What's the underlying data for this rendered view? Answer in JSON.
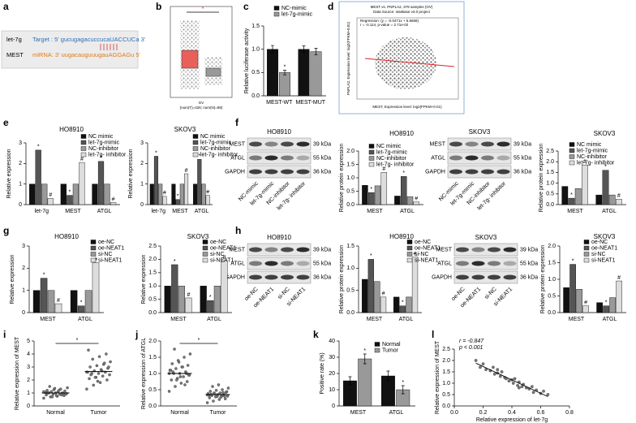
{
  "panel_labels": [
    "a",
    "b",
    "c",
    "d",
    "e",
    "f",
    "g",
    "h",
    "i",
    "j",
    "k",
    "l"
  ],
  "panel_a": {
    "rows": [
      {
        "name": "let-7g",
        "seq": "Target : 5'  gucugagacuccucaUACCUCa  3'"
      },
      {
        "name": "MEST",
        "seq": "miRNA: 3'  uugacauguuugauAGGAGu  5'"
      }
    ]
  },
  "panel_b": {
    "significance": "*",
    "xlabel": "GV",
    "note": "(num(T)=426; num(N)=88)"
  },
  "panel_d": {
    "title": "MEST vs. PNPLA2, 379 samples (OV)",
    "source": "Data Source: starBase v3.0 project",
    "regression": "Regression: (y = -0.0471x + 5.6658)",
    "stats": "r = -0.114, p-value = 2.71e-02",
    "xlabel": "MEST, Expression level: log2(FPKM+0.01)",
    "ylabel": "PNPLA2, Expression level: log2(FPKM+0.01)"
  },
  "blots": [
    {
      "title": "HO8910",
      "rows": [
        "MEST",
        "ATGL",
        "GAPDH"
      ],
      "sizes": [
        "39 kDa",
        "55 kDa",
        "36 kDa"
      ],
      "lanes": [
        "NC-mimic",
        "let-7g-mimic",
        "NC-inhibitor",
        "let-7g- inhibitor"
      ]
    },
    {
      "title": "SKOV3",
      "rows": [
        "MEST",
        "ATGL",
        "GAPDH"
      ],
      "sizes": [
        "39 kDa",
        "55 kDa",
        "36 kDa"
      ],
      "lanes": [
        "NC-mimic",
        "let-7g-mimic",
        "NC-inhibitor",
        "let-7g- inhibitor"
      ]
    },
    {
      "title": "HO8910",
      "rows": [
        "MEST",
        "ATGL",
        "GAPDH"
      ],
      "sizes": [
        "39 kDa",
        "55 kDa",
        "36 kDa"
      ],
      "lanes": [
        "oe-NC",
        "oe-NEAT1",
        "si-NC",
        "si-NEAT1"
      ]
    },
    {
      "title": "SKOV3",
      "rows": [
        "MEST",
        "ATGL",
        "GAPDH"
      ],
      "sizes": [
        "39 kDa",
        "55 kDa",
        "36 kDa"
      ],
      "lanes": [
        "oe-NC",
        "oe-NEAT1",
        "si-NC",
        "si-NEAT1"
      ]
    }
  ],
  "chart_data": [
    {
      "type": "bar",
      "categories": [
        "MEST-WT",
        "MEST-MUT"
      ],
      "ylabel": "Relative luciferase activity",
      "ylim": [
        0,
        1.5
      ],
      "yticks": [
        {
          "value": 0,
          "label": "0.0"
        },
        {
          "value": 0.5,
          "label": "0.5"
        },
        {
          "value": 1,
          "label": "1.0"
        },
        {
          "value": 1.5,
          "label": "1.5"
        }
      ],
      "series": [
        {
          "name": "NC-mimic",
          "color": "#111111",
          "values": [
            1.0,
            1.0
          ],
          "errors": [
            0.08,
            0.07
          ]
        },
        {
          "name": "let-7g-mimic",
          "color": "#999999",
          "values": [
            0.5,
            0.95
          ],
          "errors": [
            0.05,
            0.07
          ],
          "annotations": [
            "*",
            null
          ]
        }
      ]
    },
    {
      "type": "bar",
      "title": "HO8910",
      "categories": [
        "let-7g",
        "MEST",
        "ATGL"
      ],
      "ylabel": "Relative expression",
      "ylim": [
        0,
        3
      ],
      "yticks": [
        0,
        1,
        2,
        3
      ],
      "series": [
        {
          "name": "NC mimic",
          "color": "#111111",
          "values": [
            1.0,
            1.0,
            1.0
          ]
        },
        {
          "name": "let-7g-mimic",
          "color": "#555555",
          "values": [
            2.65,
            0.45,
            2.1
          ],
          "annotations": [
            "*",
            "*",
            "*"
          ]
        },
        {
          "name": "NC-inhibitor",
          "color": "#999999",
          "values": [
            1.0,
            1.0,
            1.0
          ]
        },
        {
          "name": "let-7g- inhibitor",
          "color": "#dddddd",
          "values": [
            0.3,
            2.05,
            0.1
          ],
          "annotations": [
            "#",
            "#",
            "#"
          ]
        }
      ]
    },
    {
      "type": "bar",
      "title": "SKOV3",
      "categories": [
        "let-7g",
        "MEST",
        "ATGL"
      ],
      "ylabel": "Relative expression",
      "ylim": [
        0,
        3
      ],
      "yticks": [
        0,
        1,
        2,
        3
      ],
      "series": [
        {
          "name": "NC mimic",
          "color": "#111111",
          "values": [
            1.0,
            1.0,
            1.0
          ]
        },
        {
          "name": "let-7g-mimic",
          "color": "#555555",
          "values": [
            2.35,
            0.25,
            2.2
          ],
          "annotations": [
            "*",
            "*",
            "*"
          ]
        },
        {
          "name": "NC-inhibitor",
          "color": "#999999",
          "values": [
            1.0,
            1.0,
            1.0
          ]
        },
        {
          "name": "let-7g- inhibitor",
          "color": "#dddddd",
          "values": [
            0.4,
            1.5,
            0.45
          ],
          "annotations": [
            "#",
            "#",
            "#"
          ]
        }
      ]
    },
    {
      "type": "bar",
      "title": "HO8910",
      "categories": [
        "MEST",
        "ATGL"
      ],
      "ylabel": "Relative protein expression",
      "ylim": [
        0,
        2
      ],
      "yticks": [
        {
          "value": 0,
          "label": "0.0"
        },
        {
          "value": 0.5,
          "label": "0.5"
        },
        {
          "value": 1,
          "label": "1.0"
        },
        {
          "value": 1.5,
          "label": "1.5"
        },
        {
          "value": 2,
          "label": "2.0"
        }
      ],
      "series": [
        {
          "name": "NC mimic",
          "color": "#111111",
          "values": [
            0.72,
            0.32
          ]
        },
        {
          "name": "let-7g-mimic",
          "color": "#555555",
          "values": [
            0.45,
            1.05
          ],
          "annotations": [
            "*",
            "*"
          ]
        },
        {
          "name": "NC-inhibitor",
          "color": "#999999",
          "values": [
            0.7,
            0.3
          ]
        },
        {
          "name": "let-7g- inhibitor",
          "color": "#dddddd",
          "values": [
            1.2,
            0.1
          ],
          "annotations": [
            "#",
            "#"
          ]
        }
      ]
    },
    {
      "type": "bar",
      "title": "SKOV3",
      "categories": [
        "MEST",
        "ATGL"
      ],
      "ylabel": "Relative protein expression",
      "ylim": [
        0,
        2.5
      ],
      "yticks": [
        {
          "value": 0,
          "label": "0.0"
        },
        {
          "value": 0.5,
          "label": "0.5"
        },
        {
          "value": 1,
          "label": "1.0"
        },
        {
          "value": 1.5,
          "label": "1.5"
        },
        {
          "value": 2,
          "label": "2.0"
        },
        {
          "value": 2.5,
          "label": "2.5"
        }
      ],
      "series": [
        {
          "name": "NC mimic",
          "color": "#111111",
          "values": [
            0.85,
            0.45
          ]
        },
        {
          "name": "let-7g-mimic",
          "color": "#555555",
          "values": [
            0.3,
            1.6
          ],
          "annotations": [
            "*",
            "*"
          ]
        },
        {
          "name": "NC-inhibitor",
          "color": "#999999",
          "values": [
            0.75,
            0.45
          ]
        },
        {
          "name": "let-7g- inhibitor",
          "color": "#dddddd",
          "values": [
            1.85,
            0.25
          ],
          "annotations": [
            "#",
            "#"
          ]
        }
      ]
    },
    {
      "type": "bar",
      "title": "HO8910",
      "categories": [
        "MEST",
        "ATGL"
      ],
      "ylabel": "Relative expression",
      "ylim": [
        0,
        3
      ],
      "yticks": [
        0,
        1,
        2,
        3
      ],
      "series": [
        {
          "name": "oe-NC",
          "color": "#111111",
          "values": [
            1.0,
            1.0
          ]
        },
        {
          "name": "oe-NEAT1",
          "color": "#555555",
          "values": [
            1.55,
            0.3
          ],
          "annotations": [
            "*",
            "*"
          ]
        },
        {
          "name": "si-NC",
          "color": "#999999",
          "values": [
            1.0,
            1.0
          ]
        },
        {
          "name": "si-NEAT1",
          "color": "#dddddd",
          "values": [
            0.4,
            2.25
          ],
          "annotations": [
            "#",
            "#"
          ]
        }
      ]
    },
    {
      "type": "bar",
      "title": "SKOV3",
      "categories": [
        "MEST",
        "ATGL"
      ],
      "ylabel": "Relative expression",
      "ylim": [
        0,
        2.5
      ],
      "yticks": [
        {
          "value": 0,
          "label": "0.0"
        },
        {
          "value": 0.5,
          "label": "0.5"
        },
        {
          "value": 1,
          "label": "1.0"
        },
        {
          "value": 1.5,
          "label": "1.5"
        },
        {
          "value": 2,
          "label": "2.0"
        },
        {
          "value": 2.5,
          "label": "2.5"
        }
      ],
      "series": [
        {
          "name": "oe-NC",
          "color": "#111111",
          "values": [
            1.0,
            1.0
          ]
        },
        {
          "name": "oe-NEAT1",
          "color": "#555555",
          "values": [
            1.8,
            0.45
          ],
          "annotations": [
            "*",
            "*"
          ]
        },
        {
          "name": "si-NC",
          "color": "#999999",
          "values": [
            1.0,
            1.0
          ]
        },
        {
          "name": "si-NEAT1",
          "color": "#dddddd",
          "values": [
            0.55,
            1.95
          ],
          "annotations": [
            "#",
            "#"
          ]
        }
      ]
    },
    {
      "type": "bar",
      "title": "HO8910",
      "categories": [
        "MEST",
        "ATGL"
      ],
      "ylabel": "Relative protein expression",
      "ylim": [
        0,
        1.5
      ],
      "yticks": [
        {
          "value": 0,
          "label": "0.0"
        },
        {
          "value": 0.5,
          "label": "0.5"
        },
        {
          "value": 1,
          "label": "1.0"
        },
        {
          "value": 1.5,
          "label": "1.5"
        }
      ],
      "series": [
        {
          "name": "oe-NC",
          "color": "#111111",
          "values": [
            0.75,
            0.35
          ]
        },
        {
          "name": "oe-NEAT1",
          "color": "#555555",
          "values": [
            1.2,
            0.15
          ],
          "annotations": [
            "*",
            "*"
          ]
        },
        {
          "name": "si-NC",
          "color": "#999999",
          "values": [
            0.7,
            0.35
          ]
        },
        {
          "name": "si-NEAT1",
          "color": "#dddddd",
          "values": [
            0.35,
            1.25
          ],
          "annotations": [
            "#",
            "#"
          ]
        }
      ]
    },
    {
      "type": "bar",
      "title": "SKOV3",
      "categories": [
        "MEST",
        "ATGL"
      ],
      "ylabel": "Relative protein expression",
      "ylim": [
        0,
        2
      ],
      "yticks": [
        {
          "value": 0,
          "label": "0.0"
        },
        {
          "value": 0.5,
          "label": "0.5"
        },
        {
          "value": 1,
          "label": "1.0"
        },
        {
          "value": 1.5,
          "label": "1.5"
        },
        {
          "value": 2,
          "label": "2.0"
        }
      ],
      "series": [
        {
          "name": "oe-NC",
          "color": "#111111",
          "values": [
            0.75,
            0.3
          ]
        },
        {
          "name": "oe-NEAT1",
          "color": "#555555",
          "values": [
            1.45,
            0.2
          ],
          "annotations": [
            "*",
            "*"
          ]
        },
        {
          "name": "si-NC",
          "color": "#999999",
          "values": [
            0.7,
            0.45
          ]
        },
        {
          "name": "si-NEAT1",
          "color": "#dddddd",
          "values": [
            0.2,
            0.95
          ],
          "annotations": [
            "#",
            "#"
          ]
        }
      ]
    },
    {
      "type": "strip",
      "categories": [
        "Normal",
        "Tumor"
      ],
      "ylabel": "Relative expression of MEST",
      "color": "#777777",
      "ylim": [
        0,
        5
      ],
      "yticks": [
        0,
        1,
        2,
        3,
        4,
        5
      ],
      "significance": "*",
      "means": [
        1.0,
        2.65
      ],
      "values": [
        [
          0.6,
          0.7,
          0.75,
          0.8,
          0.85,
          0.9,
          0.9,
          0.95,
          1.0,
          1.0,
          1.0,
          1.05,
          1.1,
          1.1,
          1.15,
          1.2,
          1.25,
          1.3,
          1.4,
          1.5,
          0.8,
          0.95,
          1.05,
          0.7,
          1.2,
          0.9,
          1.0,
          1.35,
          0.85,
          1.1
        ],
        [
          1.3,
          1.6,
          1.8,
          2.0,
          2.1,
          2.2,
          2.3,
          2.4,
          2.5,
          2.5,
          2.6,
          2.6,
          2.7,
          2.8,
          2.9,
          3.0,
          3.1,
          3.2,
          3.4,
          3.6,
          3.8,
          4.0,
          4.3,
          2.2,
          2.7,
          3.0,
          2.4,
          1.9,
          3.3,
          2.6
        ]
      ]
    },
    {
      "type": "strip",
      "categories": [
        "Normal",
        "Tumor"
      ],
      "ylabel": "Relative expression of ATGL",
      "color": "#777777",
      "ylim": [
        0,
        2
      ],
      "yticks": [
        {
          "value": 0,
          "label": "0.0"
        },
        {
          "value": 0.5,
          "label": "0.5"
        },
        {
          "value": 1,
          "label": "1.0"
        },
        {
          "value": 1.5,
          "label": "1.5"
        },
        {
          "value": 2,
          "label": "2.0"
        }
      ],
      "significance": "*",
      "means": [
        1.0,
        0.35
      ],
      "values": [
        [
          0.45,
          0.6,
          0.7,
          0.75,
          0.8,
          0.85,
          0.9,
          0.95,
          1.0,
          1.0,
          1.05,
          1.1,
          1.15,
          1.2,
          1.25,
          1.3,
          1.4,
          1.5,
          1.6,
          1.75,
          0.9,
          1.0,
          1.1,
          0.8,
          1.2,
          0.95,
          1.05,
          1.35,
          0.65,
          1.0
        ],
        [
          0.1,
          0.15,
          0.2,
          0.22,
          0.25,
          0.28,
          0.3,
          0.3,
          0.32,
          0.35,
          0.35,
          0.38,
          0.4,
          0.4,
          0.42,
          0.45,
          0.48,
          0.5,
          0.55,
          0.6,
          0.65,
          0.3,
          0.33,
          0.37,
          0.27,
          0.44,
          0.36,
          0.29,
          0.41,
          0.34
        ]
      ]
    },
    {
      "type": "bar",
      "categories": [
        "MEST",
        "ATGL"
      ],
      "ylabel": "Positive rate (%)",
      "ylim": [
        0,
        40
      ],
      "yticks": [
        0,
        10,
        20,
        30,
        40
      ],
      "series": [
        {
          "name": "Normal",
          "color": "#111111",
          "values": [
            15.5,
            18.5
          ],
          "errors": [
            2.5,
            3
          ]
        },
        {
          "name": "Tumor",
          "color": "#999999",
          "values": [
            29,
            10
          ],
          "errors": [
            3,
            2.5
          ],
          "annotations": [
            "*",
            "*"
          ]
        }
      ]
    },
    {
      "type": "scatter",
      "xlabel": "Relative expression of let-7g",
      "ylabel": "Relative expression of MEST",
      "color": "#777777",
      "annotations": [
        "r = -0.847",
        "p < 0.001"
      ],
      "xlim": [
        0,
        0.8
      ],
      "xticks": [
        {
          "value": 0,
          "label": "0.0"
        },
        {
          "value": 0.2,
          "label": "0.2"
        },
        {
          "value": 0.4,
          "label": "0.4"
        },
        {
          "value": 0.6,
          "label": "0.6"
        },
        {
          "value": 0.8,
          "label": "0.8"
        }
      ],
      "ylim": [
        0,
        2.5
      ],
      "yticks": [
        {
          "value": 0,
          "label": "0.0"
        },
        {
          "value": 0.5,
          "label": "0.5"
        },
        {
          "value": 1,
          "label": "1.0"
        },
        {
          "value": 1.5,
          "label": "1.5"
        },
        {
          "value": 2,
          "label": "2.0"
        },
        {
          "value": 2.5,
          "label": "2.5"
        }
      ],
      "x": [
        0.15,
        0.18,
        0.2,
        0.22,
        0.25,
        0.27,
        0.28,
        0.3,
        0.32,
        0.33,
        0.35,
        0.36,
        0.38,
        0.4,
        0.41,
        0.42,
        0.44,
        0.45,
        0.47,
        0.48,
        0.5,
        0.52,
        0.54,
        0.55,
        0.57,
        0.6,
        0.62,
        0.65,
        0.3,
        0.45
      ],
      "y": [
        2.0,
        1.7,
        1.85,
        1.6,
        1.55,
        1.7,
        1.4,
        1.45,
        1.3,
        1.5,
        1.25,
        1.2,
        1.1,
        1.15,
        1.0,
        1.2,
        0.9,
        1.05,
        0.85,
        0.95,
        0.8,
        0.75,
        0.85,
        0.6,
        0.7,
        0.55,
        0.65,
        0.5,
        1.6,
        0.8
      ]
    }
  ]
}
